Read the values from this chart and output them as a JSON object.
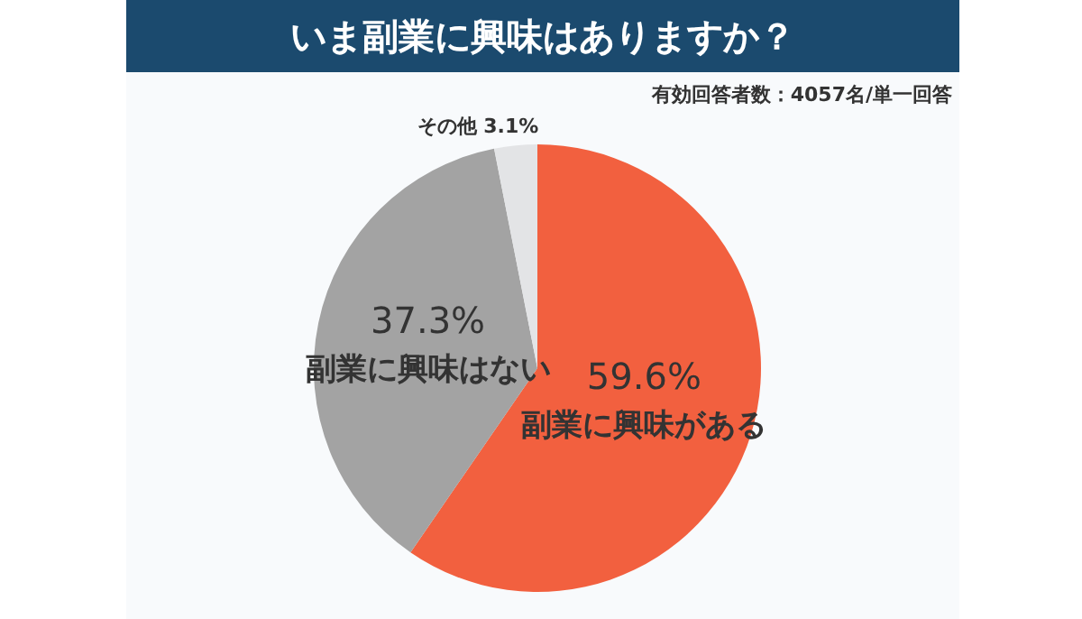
{
  "chart_data": {
    "type": "pie",
    "title": "いま副業に興味はありますか？",
    "subtitle": "有効回答者数：4057名/単一回答",
    "categories": [
      "副業に興味がある",
      "副業に興味はない",
      "その他"
    ],
    "values": [
      59.6,
      37.3,
      3.1
    ],
    "value_labels": [
      "59.6%",
      "37.3%",
      "3.1%"
    ],
    "colors": [
      "#f2603f",
      "#a3a3a3",
      "#e3e4e6"
    ]
  }
}
